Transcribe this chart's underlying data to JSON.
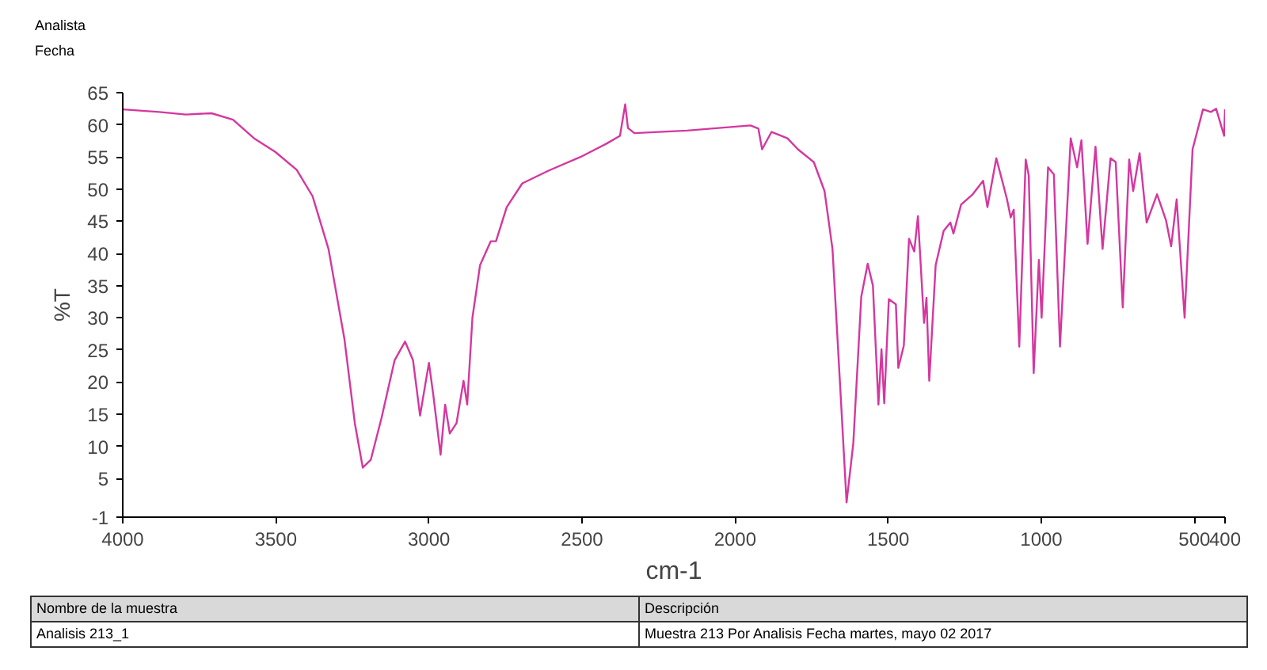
{
  "chart_data": {
    "type": "line",
    "xlabel": "cm-1",
    "ylabel": "%T",
    "xlim": [
      4000,
      400
    ],
    "ylim": [
      -1,
      65
    ],
    "xticks": [
      4000,
      3500,
      3000,
      2500,
      2000,
      1500,
      1000,
      500,
      400
    ],
    "yticks": [
      -1,
      5,
      10,
      15,
      20,
      25,
      30,
      35,
      40,
      45,
      50,
      55,
      60,
      65
    ],
    "annotations": [
      "Analista",
      "Fecha",
      "Nombre de la muestra",
      "Descripción",
      "Analisis 213_1",
      "Muestra 213 Por Analisis Fecha martes, mayo 02 2017"
    ],
    "series": [
      {
        "color": "#d4379f",
        "x": [
          4000,
          3881,
          3794,
          3710,
          3640,
          3571,
          3502,
          3432,
          3380,
          3328,
          3276,
          3242,
          3216,
          3190,
          3155,
          3112,
          3078,
          3052,
          3029,
          3000,
          2986,
          2962,
          2947,
          2932,
          2910,
          2887,
          2875,
          2858,
          2833,
          2798,
          2781,
          2746,
          2695,
          2608,
          2505,
          2419,
          2376,
          2359,
          2350,
          2329,
          2157,
          1950,
          1924,
          1912,
          1881,
          1829,
          1795,
          1743,
          1708,
          1682,
          1657,
          1636,
          1614,
          1588,
          1567,
          1550,
          1532,
          1522,
          1513,
          1498,
          1475,
          1467,
          1449,
          1432,
          1415,
          1403,
          1383,
          1375,
          1366,
          1345,
          1319,
          1297,
          1287,
          1262,
          1224,
          1190,
          1176,
          1147,
          1126,
          1112,
          1100,
          1090,
          1072,
          1051,
          1041,
          1025,
          1008,
          999,
          978,
          959,
          939,
          904,
          883,
          869,
          849,
          823,
          800,
          774,
          757,
          734,
          713,
          700,
          679,
          656,
          622,
          593,
          576,
          558,
          532,
          506,
          472,
          446,
          429,
          403,
          400
        ],
        "values": [
          62.4,
          62.0,
          61.6,
          61.8,
          60.8,
          57.9,
          55.8,
          53.0,
          48.9,
          40.7,
          26.7,
          13.6,
          6.7,
          7.9,
          14.4,
          23.4,
          26.3,
          23.4,
          14.8,
          23.0,
          18.1,
          8.7,
          16.5,
          12.0,
          13.6,
          20.2,
          16.5,
          30.0,
          38.2,
          41.9,
          41.9,
          47.2,
          50.9,
          52.9,
          55.0,
          57.1,
          58.3,
          63.2,
          59.5,
          58.7,
          59.1,
          59.9,
          59.4,
          56.2,
          58.9,
          57.9,
          56.2,
          54.2,
          49.7,
          40.7,
          19.4,
          1.3,
          10.5,
          33.3,
          38.4,
          35.0,
          16.5,
          25.1,
          16.7,
          32.9,
          32.1,
          22.2,
          25.7,
          42.3,
          40.3,
          45.8,
          29.2,
          33.1,
          20.2,
          38.2,
          43.5,
          44.8,
          43.1,
          47.6,
          49.2,
          51.3,
          47.2,
          54.8,
          51.0,
          48.4,
          45.6,
          46.8,
          25.5,
          54.6,
          52.1,
          21.4,
          39.0,
          30.0,
          53.4,
          52.3,
          25.5,
          57.9,
          53.4,
          57.6,
          41.5,
          56.6,
          40.7,
          54.8,
          54.2,
          31.6,
          54.6,
          49.7,
          55.6,
          44.8,
          49.2,
          45.2,
          41.1,
          48.4,
          30.0,
          56.2,
          62.4,
          62.0,
          62.5,
          58.3,
          62.4
        ]
      }
    ]
  }
}
